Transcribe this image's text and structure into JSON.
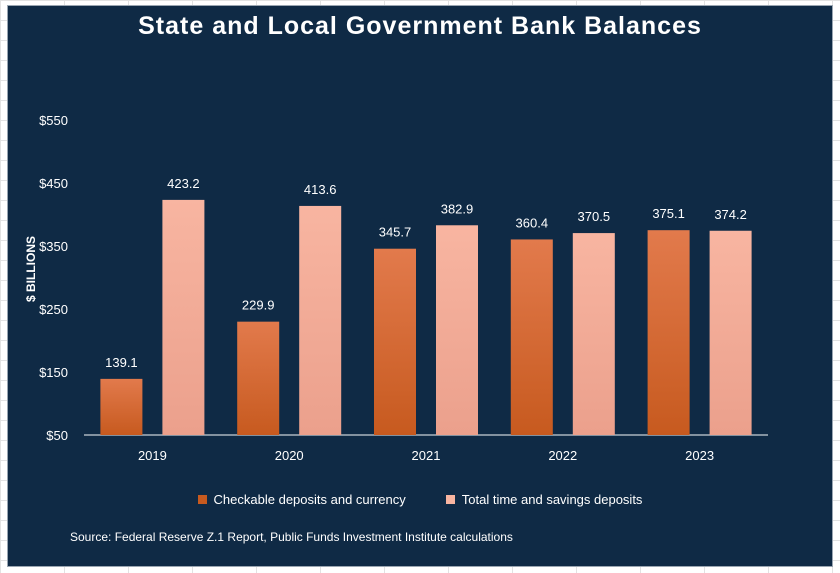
{
  "chart_data": {
    "type": "bar",
    "title": "State and Local Government Bank Balances",
    "xlabel": "",
    "ylabel": "$ BILLIONS",
    "categories": [
      "2019",
      "2020",
      "2021",
      "2022",
      "2023"
    ],
    "series": [
      {
        "name": "Checkable deposits and currency",
        "values": [
          139.1,
          229.9,
          345.7,
          360.4,
          375.1
        ]
      },
      {
        "name": "Total time and savings deposits",
        "values": [
          423.2,
          413.6,
          382.9,
          370.5,
          374.2
        ]
      }
    ],
    "data_labels": [
      [
        "139.1",
        "229.9",
        "345.7",
        "360.4",
        "375.1"
      ],
      [
        "423.2",
        "413.6",
        "382.9",
        "370.5",
        "374.2"
      ]
    ],
    "ylim": [
      50,
      550
    ],
    "yticks": [
      50,
      150,
      250,
      350,
      450,
      550
    ],
    "ytick_labels": [
      "$50",
      "$150",
      "$250",
      "$350",
      "$450",
      "$550"
    ],
    "grid": false,
    "legend_position": "bottom",
    "source": "Source:  Federal Reserve Z.1 Report, Public Funds Investment Institute calculations"
  },
  "colors": {
    "background": "#0f2a45",
    "series_1_top": "#e27a4c",
    "series_1_bottom": "#c75a1f",
    "series_2_top": "#f8b5a1",
    "series_2_bottom": "#eba08c",
    "axis_line": "#aab4bf",
    "text": "#ffffff"
  }
}
